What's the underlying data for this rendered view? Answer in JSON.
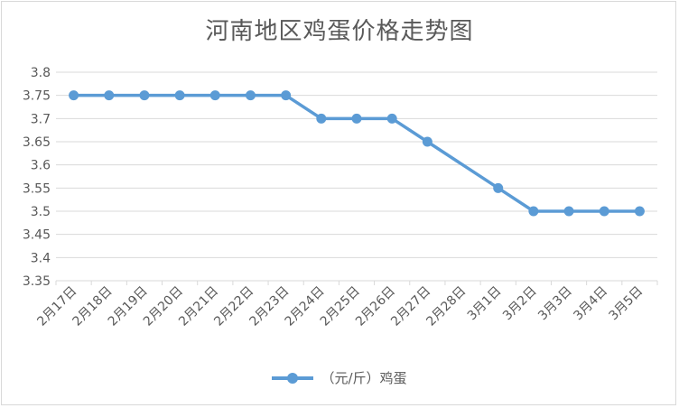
{
  "chart_data": {
    "type": "line",
    "title": "河南地区鸡蛋价格走势图",
    "xlabel": "",
    "ylabel": "",
    "categories": [
      "2月17日",
      "2月18日",
      "2月19日",
      "2月20日",
      "2月21日",
      "2月22日",
      "2月23日",
      "2月24日",
      "2月25日",
      "2月26日",
      "2月27日",
      "2月28日",
      "3月1日",
      "3月2日",
      "3月3日",
      "3月4日",
      "3月5日"
    ],
    "series": [
      {
        "name": "（元/斤）鸡蛋",
        "values": [
          3.75,
          3.75,
          3.75,
          3.75,
          3.75,
          3.75,
          3.75,
          3.7,
          3.7,
          3.7,
          3.65,
          null,
          3.55,
          3.5,
          3.5,
          3.5,
          3.5
        ]
      }
    ],
    "ylim": [
      3.35,
      3.8
    ],
    "yticks": [
      "3.35",
      "3.4",
      "3.45",
      "3.5",
      "3.55",
      "3.6",
      "3.65",
      "3.7",
      "3.75",
      "3.8"
    ],
    "grid": true,
    "legend": "bottom",
    "color": "#5b9bd5"
  }
}
